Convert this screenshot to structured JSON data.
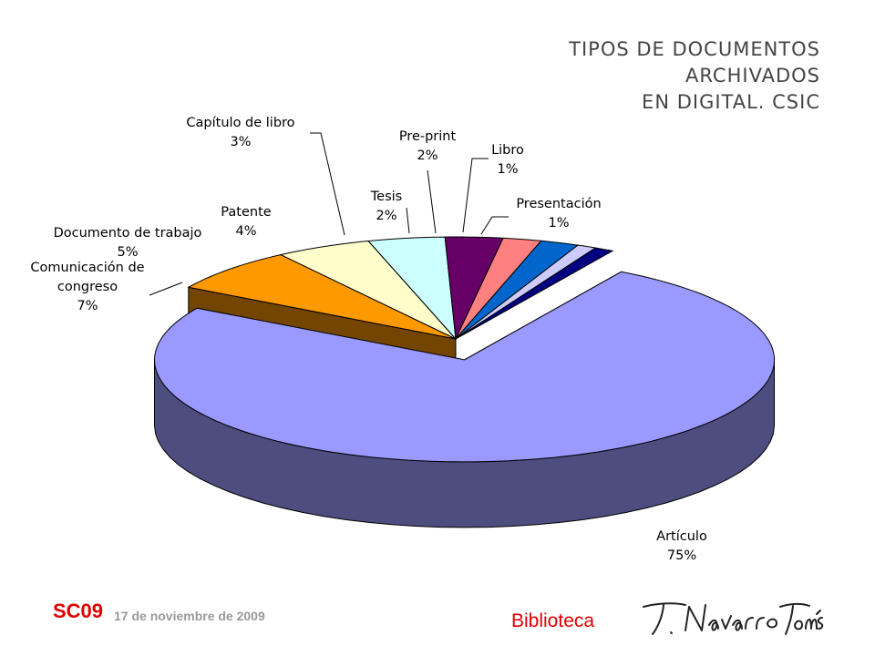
{
  "title_lines": [
    "TIPOS DE DOCUMENTOS",
    "ARCHIVADOS",
    "EN DIGITAL. CSIC"
  ],
  "footer": {
    "code": "SC09",
    "date": "17 de noviembre de 2009",
    "library": "Biblioteca",
    "signature": "T. Navarro Tomás"
  },
  "chart_data": {
    "type": "pie",
    "style": "3d-exploded",
    "title": "TIPOS DE DOCUMENTOS ARCHIVADOS EN DIGITAL. CSIC",
    "legend": "none",
    "slices": [
      {
        "label": "Artículo",
        "value": 75,
        "display": "75%",
        "color": "#9999ff"
      },
      {
        "label": "Comunicación de congreso",
        "value": 7,
        "display": "7%",
        "color": "#ff9900"
      },
      {
        "label": "Documento de trabajo",
        "value": 5,
        "display": "5%",
        "color": "#ffffcc"
      },
      {
        "label": "Patente",
        "value": 4,
        "display": "4%",
        "color": "#ccffff"
      },
      {
        "label": "Capítulo de libro",
        "value": 3,
        "display": "3%",
        "color": "#660066"
      },
      {
        "label": "Tesis",
        "value": 2,
        "display": "2%",
        "color": "#ff8080"
      },
      {
        "label": "Pre-print",
        "value": 2,
        "display": "2%",
        "color": "#0066cc"
      },
      {
        "label": "Libro",
        "value": 1,
        "display": "1%",
        "color": "#ccccff"
      },
      {
        "label": "Presentación",
        "value": 1,
        "display": "1%",
        "color": "#000080"
      }
    ]
  }
}
